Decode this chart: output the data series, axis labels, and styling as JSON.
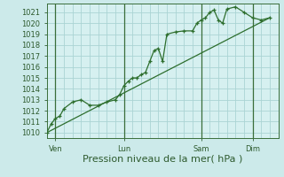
{
  "bg_color": "#cceaea",
  "plot_bg_color": "#d6f0f0",
  "grid_color": "#aad4d4",
  "line_color": "#2d6e2d",
  "marker_color": "#2d6e2d",
  "ylabel_ticks": [
    1010,
    1011,
    1012,
    1013,
    1014,
    1015,
    1016,
    1017,
    1018,
    1019,
    1020,
    1021
  ],
  "ylim": [
    1009.5,
    1021.8
  ],
  "xlabel": "Pression niveau de la mer( hPa )",
  "xtick_labels": [
    "Ven",
    "Lun",
    "Sam",
    "Dim"
  ],
  "xtick_positions": [
    1,
    9,
    18,
    24
  ],
  "xlim": [
    0,
    27
  ],
  "num_vgrid": 27,
  "main_x": [
    0,
    0.5,
    1.0,
    1.5,
    2.0,
    3.0,
    4.0,
    5.0,
    6.0,
    7.0,
    8.0,
    8.5,
    9.0,
    9.5,
    10.0,
    10.5,
    11.0,
    11.5,
    12.0,
    12.5,
    13.0,
    13.5,
    14.0,
    15.0,
    16.0,
    17.0,
    17.5,
    18.0,
    18.5,
    19.0,
    19.5,
    20.0,
    20.5,
    21.0,
    22.0,
    23.0,
    24.0,
    25.0,
    26.0
  ],
  "main_y": [
    1010.0,
    1010.8,
    1011.3,
    1011.5,
    1012.2,
    1012.8,
    1013.0,
    1012.5,
    1012.5,
    1012.8,
    1013.0,
    1013.5,
    1014.3,
    1014.7,
    1015.0,
    1015.0,
    1015.3,
    1015.5,
    1016.5,
    1017.5,
    1017.7,
    1016.5,
    1019.0,
    1019.2,
    1019.3,
    1019.3,
    1020.0,
    1020.3,
    1020.5,
    1021.0,
    1021.2,
    1020.3,
    1020.0,
    1021.3,
    1021.5,
    1021.0,
    1020.5,
    1020.3,
    1020.5
  ],
  "trend_x": [
    0,
    26
  ],
  "trend_y": [
    1010.0,
    1020.5
  ],
  "vline_positions": [
    1,
    9,
    18,
    24
  ],
  "vline_color": "#3a6e3a",
  "font_color": "#2d5a2d",
  "tick_fontsize": 6.0,
  "xlabel_fontsize": 8.0
}
